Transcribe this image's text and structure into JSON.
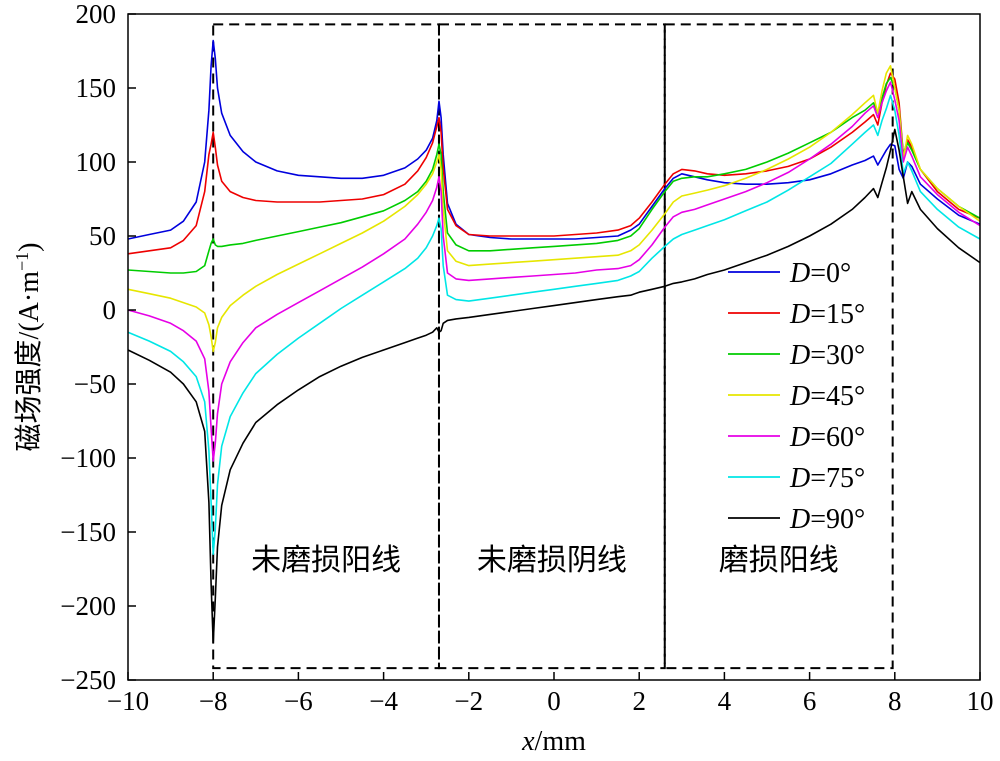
{
  "chart_data": {
    "type": "line",
    "xlabel_var": "x",
    "xlabel_unit": "/mm",
    "ylabel_main": "磁场强度/(A·m",
    "ylabel_sup": "−1",
    "ylabel_close": ")",
    "xlim": [
      -10,
      10
    ],
    "ylim": [
      -250,
      200
    ],
    "xticks": [
      -10,
      -8,
      -6,
      -4,
      -2,
      0,
      2,
      4,
      6,
      8,
      10
    ],
    "yticks": [
      200,
      150,
      100,
      50,
      0,
      -50,
      -100,
      -150,
      -200,
      -250
    ],
    "grid": false,
    "legend_position": "right",
    "x": [
      -10,
      -9.5,
      -9,
      -8.7,
      -8.4,
      -8.2,
      -8.1,
      -8.05,
      -8,
      -7.95,
      -7.9,
      -7.8,
      -7.6,
      -7.3,
      -7,
      -6.5,
      -6,
      -5.5,
      -5,
      -4.5,
      -4,
      -3.5,
      -3.2,
      -3,
      -2.85,
      -2.75,
      -2.7,
      -2.65,
      -2.6,
      -2.5,
      -2.3,
      -2,
      -1.5,
      -1,
      -0.5,
      0,
      0.5,
      1,
      1.5,
      1.8,
      2,
      2.3,
      2.6,
      2.8,
      3,
      3.3,
      3.6,
      4,
      4.5,
      5,
      5.5,
      6,
      6.5,
      7,
      7.3,
      7.5,
      7.6,
      7.7,
      7.8,
      7.9,
      8,
      8.1,
      8.2,
      8.3,
      8.4,
      8.6,
      9,
      9.5,
      10
    ],
    "series": [
      {
        "name": "D=0°",
        "color": "#0000dd",
        "values": [
          48,
          51,
          54,
          60,
          73,
          100,
          135,
          165,
          182,
          170,
          150,
          133,
          118,
          107,
          100,
          94,
          91,
          90,
          89,
          89,
          91,
          96,
          102,
          108,
          116,
          128,
          141,
          130,
          105,
          72,
          58,
          51,
          49,
          48,
          48,
          48,
          48,
          49,
          50,
          54,
          58,
          70,
          82,
          89,
          92,
          90,
          88,
          86,
          85,
          85,
          86,
          88,
          92,
          98,
          101,
          104,
          98,
          103,
          108,
          112,
          111,
          95,
          89,
          100,
          97,
          85,
          75,
          64,
          58
        ]
      },
      {
        "name": "D=15°",
        "color": "#ee0000",
        "values": [
          38,
          40,
          42,
          47,
          57,
          80,
          105,
          112,
          120,
          110,
          98,
          87,
          80,
          76,
          74,
          73,
          73,
          73,
          74,
          75,
          78,
          85,
          94,
          103,
          113,
          124,
          130,
          120,
          96,
          68,
          57,
          51,
          50,
          50,
          50,
          50,
          51,
          52,
          54,
          57,
          62,
          73,
          85,
          92,
          95,
          94,
          92,
          91,
          92,
          94,
          97,
          102,
          110,
          120,
          127,
          132,
          125,
          140,
          152,
          160,
          156,
          140,
          105,
          115,
          110,
          95,
          80,
          68,
          62
        ]
      },
      {
        "name": "D=30°",
        "color": "#00cc00",
        "values": [
          27,
          26,
          25,
          25,
          26,
          30,
          40,
          45,
          48,
          44,
          43,
          43,
          44,
          45,
          47,
          50,
          53,
          56,
          59,
          63,
          67,
          74,
          80,
          87,
          95,
          105,
          112,
          105,
          80,
          52,
          44,
          40,
          40,
          41,
          42,
          43,
          44,
          45,
          47,
          50,
          55,
          68,
          80,
          87,
          89,
          90,
          90,
          92,
          95,
          100,
          106,
          113,
          120,
          130,
          135,
          140,
          133,
          143,
          153,
          157,
          150,
          135,
          105,
          113,
          108,
          95,
          82,
          70,
          62
        ]
      },
      {
        "name": "D=45°",
        "color": "#e6e600",
        "values": [
          14,
          11,
          8,
          5,
          2,
          -2,
          -10,
          -18,
          -28,
          -22,
          -12,
          -5,
          3,
          10,
          16,
          24,
          31,
          38,
          45,
          52,
          60,
          70,
          78,
          85,
          92,
          100,
          105,
          95,
          68,
          40,
          33,
          30,
          31,
          32,
          33,
          34,
          35,
          36,
          37,
          40,
          44,
          54,
          65,
          73,
          77,
          79,
          81,
          84,
          89,
          95,
          102,
          110,
          120,
          132,
          140,
          145,
          133,
          148,
          160,
          165,
          150,
          135,
          102,
          118,
          112,
          95,
          82,
          70,
          60
        ]
      },
      {
        "name": "D=60°",
        "color": "#e600e6",
        "values": [
          0,
          -4,
          -9,
          -14,
          -21,
          -33,
          -55,
          -80,
          -102,
          -90,
          -70,
          -50,
          -35,
          -22,
          -12,
          -3,
          5,
          13,
          21,
          29,
          38,
          48,
          58,
          66,
          74,
          83,
          90,
          80,
          50,
          25,
          21,
          20,
          21,
          22,
          23,
          24,
          25,
          27,
          28,
          30,
          34,
          44,
          56,
          63,
          66,
          68,
          71,
          75,
          80,
          86,
          93,
          102,
          112,
          124,
          133,
          138,
          130,
          140,
          148,
          154,
          142,
          128,
          100,
          110,
          104,
          90,
          78,
          66,
          57
        ]
      },
      {
        "name": "D=75°",
        "color": "#00e6e6",
        "values": [
          -15,
          -21,
          -28,
          -35,
          -45,
          -62,
          -95,
          -130,
          -165,
          -148,
          -118,
          -92,
          -72,
          -56,
          -43,
          -30,
          -19,
          -9,
          1,
          10,
          19,
          28,
          35,
          42,
          50,
          57,
          62,
          55,
          30,
          10,
          7,
          6,
          8,
          10,
          12,
          14,
          16,
          18,
          20,
          23,
          26,
          35,
          43,
          48,
          51,
          54,
          57,
          61,
          67,
          73,
          81,
          90,
          99,
          112,
          120,
          125,
          118,
          128,
          136,
          145,
          135,
          118,
          92,
          100,
          94,
          80,
          68,
          56,
          48
        ]
      },
      {
        "name": "D=90°",
        "color": "#000000",
        "values": [
          -27,
          -34,
          -42,
          -50,
          -62,
          -82,
          -130,
          -185,
          -225,
          -195,
          -160,
          -132,
          -108,
          -90,
          -76,
          -64,
          -54,
          -45,
          -38,
          -32,
          -27,
          -22,
          -19,
          -17,
          -15,
          -12,
          -15,
          -14,
          -9,
          -7,
          -6,
          -5,
          -3,
          -1,
          1,
          3,
          5,
          7,
          9,
          10,
          12,
          14,
          16,
          18,
          19,
          21,
          24,
          27,
          32,
          37,
          43,
          50,
          58,
          68,
          76,
          82,
          76,
          86,
          96,
          108,
          122,
          108,
          90,
          72,
          80,
          68,
          55,
          42,
          32
        ]
      }
    ],
    "regions": [
      {
        "label": "未磨损阳线",
        "x0": -8,
        "x1": -2.7
      },
      {
        "label": "未磨损阴线",
        "x0": -2.7,
        "x1": 2.6
      },
      {
        "label": "磨损阳线",
        "x0": 2.6,
        "x1": 7.95
      }
    ],
    "region_y_top": 193,
    "region_y_bottom": -242,
    "legend_entries": [
      {
        "prefix": "D",
        "value": "=0°"
      },
      {
        "prefix": "D",
        "value": "=15°"
      },
      {
        "prefix": "D",
        "value": "=30°"
      },
      {
        "prefix": "D",
        "value": "=45°"
      },
      {
        "prefix": "D",
        "value": "=60°"
      },
      {
        "prefix": "D",
        "value": "=75°"
      },
      {
        "prefix": "D",
        "value": "=90°"
      }
    ]
  }
}
